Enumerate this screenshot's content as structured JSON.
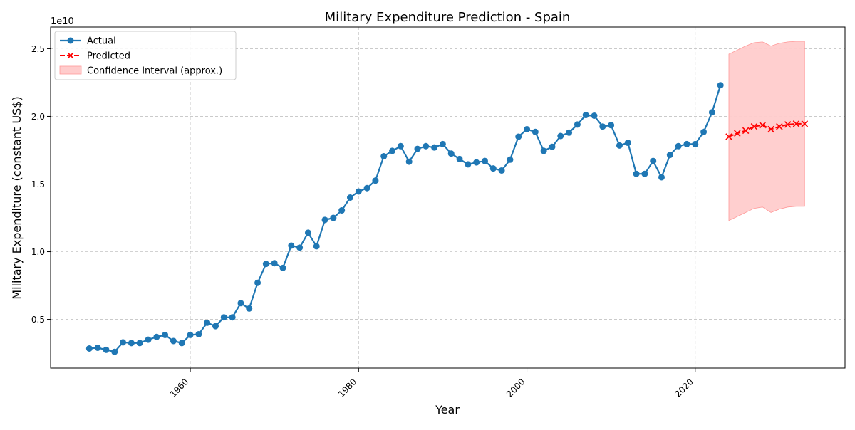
{
  "chart_data": {
    "type": "line",
    "title": "Military Expenditure Prediction - Spain",
    "xlabel": "Year",
    "ylabel": "Military Expenditure (constant US$)",
    "y_offset_label": "1e10",
    "xlim": [
      1943.4,
      2037.8
    ],
    "ylim": [
      1400000000,
      26600000000
    ],
    "x_ticks": [
      1960,
      1980,
      2000,
      2020
    ],
    "x_tick_labels": [
      "1960",
      "1980",
      "2000",
      "2020"
    ],
    "y_ticks": [
      5000000000,
      10000000000,
      15000000000,
      20000000000,
      25000000000
    ],
    "y_tick_labels": [
      "0.5",
      "1.0",
      "1.5",
      "2.0",
      "2.5"
    ],
    "grid": true,
    "legend_position": "upper-left",
    "legend": [
      {
        "label": "Actual",
        "kind": "line-circle",
        "color": "#1f77b4"
      },
      {
        "label": "Predicted",
        "kind": "dash-x",
        "color": "#ff0000"
      },
      {
        "label": "Confidence Interval (approx.)",
        "kind": "patch",
        "color": "#ffcccc"
      }
    ],
    "series": [
      {
        "name": "Actual",
        "color": "#1f77b4",
        "x": [
          1948,
          1949,
          1950,
          1951,
          1952,
          1953,
          1954,
          1955,
          1956,
          1957,
          1958,
          1959,
          1960,
          1961,
          1962,
          1963,
          1964,
          1965,
          1966,
          1967,
          1968,
          1969,
          1970,
          1971,
          1972,
          1973,
          1974,
          1975,
          1976,
          1977,
          1978,
          1979,
          1980,
          1981,
          1982,
          1983,
          1984,
          1985,
          1986,
          1987,
          1988,
          1989,
          1990,
          1991,
          1992,
          1993,
          1994,
          1995,
          1996,
          1997,
          1998,
          1999,
          2000,
          2001,
          2002,
          2003,
          2004,
          2005,
          2006,
          2007,
          2008,
          2009,
          2010,
          2011,
          2012,
          2013,
          2014,
          2015,
          2016,
          2017,
          2018,
          2019,
          2020,
          2021,
          2022,
          2023
        ],
        "values": [
          2850000000,
          2900000000,
          2750000000,
          2600000000,
          3300000000,
          3250000000,
          3250000000,
          3500000000,
          3700000000,
          3850000000,
          3400000000,
          3250000000,
          3850000000,
          3900000000,
          4750000000,
          4500000000,
          5150000000,
          5150000000,
          6200000000,
          5800000000,
          7700000000,
          9100000000,
          9150000000,
          8800000000,
          10450000000,
          10300000000,
          11400000000,
          10400000000,
          12350000000,
          12500000000,
          13050000000,
          14000000000,
          14450000000,
          14700000000,
          15250000000,
          17050000000,
          17450000000,
          17800000000,
          16650000000,
          17600000000,
          17800000000,
          17700000000,
          17950000000,
          17250000000,
          16850000000,
          16450000000,
          16600000000,
          16700000000,
          16150000000,
          16000000000,
          16800000000,
          18500000000,
          19050000000,
          18850000000,
          17450000000,
          17750000000,
          18550000000,
          18800000000,
          19400000000,
          20100000000,
          20050000000,
          19250000000,
          19350000000,
          17850000000,
          18050000000,
          15750000000,
          15750000000,
          16700000000,
          15500000000,
          17150000000,
          17800000000,
          17950000000,
          17950000000,
          18850000000,
          20300000000,
          22300000000
        ]
      },
      {
        "name": "Predicted",
        "color": "#ff0000",
        "x": [
          2024,
          2025,
          2026,
          2027,
          2028,
          2029,
          2030,
          2031,
          2032,
          2033
        ],
        "values": [
          18500000000,
          18750000000,
          18950000000,
          19250000000,
          19350000000,
          19050000000,
          19250000000,
          19400000000,
          19450000000,
          19450000000
        ]
      }
    ],
    "confidence_interval": {
      "color": "#ffcccc",
      "x": [
        2024,
        2025,
        2026,
        2027,
        2028,
        2029,
        2030,
        2031,
        2032,
        2033
      ],
      "lower": [
        12300000000,
        12600000000,
        12900000000,
        13200000000,
        13300000000,
        12900000000,
        13150000000,
        13300000000,
        13350000000,
        13350000000
      ],
      "upper": [
        24600000000,
        24900000000,
        25200000000,
        25450000000,
        25500000000,
        25200000000,
        25400000000,
        25500000000,
        25550000000,
        25550000000
      ]
    }
  }
}
